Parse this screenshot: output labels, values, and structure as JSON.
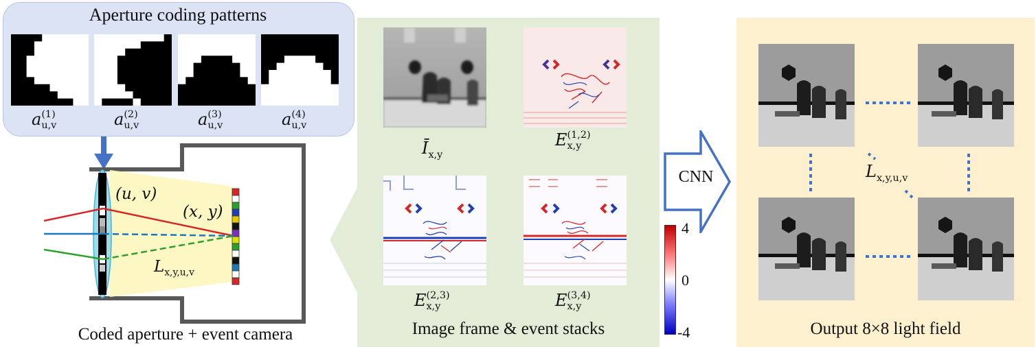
{
  "aperture_panel": {
    "title": "Aperture coding patterns",
    "pattern_symbols": [
      {
        "base": "a",
        "sub": "u,v",
        "sup": "(1)"
      },
      {
        "base": "a",
        "sub": "u,v",
        "sup": "(2)"
      },
      {
        "base": "a",
        "sub": "u,v",
        "sup": "(3)"
      },
      {
        "base": "a",
        "sub": "u,v",
        "sup": "(4)"
      }
    ]
  },
  "camera": {
    "label_uv": "(u, v)",
    "label_xy": "(x, y)",
    "label_L": {
      "base": "L",
      "sub": "x,y,u,v"
    },
    "caption": "Coded aperture + event camera"
  },
  "middle_panel": {
    "symbols": [
      {
        "base": "Ī",
        "sub": "x,y",
        "sup": ""
      },
      {
        "base": "E",
        "sub": "x,y",
        "sup": "(1,2)"
      },
      {
        "base": "E",
        "sub": "x,y",
        "sup": "(2,3)"
      },
      {
        "base": "E",
        "sub": "x,y",
        "sup": "(3,4)"
      }
    ],
    "caption": "Image frame & event stacks",
    "colorbar_ticks": [
      "4",
      "0",
      "-4"
    ]
  },
  "cnn_arrow_label": "CNN",
  "output_panel": {
    "label_L": {
      "base": "L",
      "sub": "x,y,u,v"
    },
    "caption": "Output 8×8 light field"
  },
  "colors": {
    "aperture_panel_bg": "#dbe3f4",
    "middle_panel_bg": "#e2ecd6",
    "output_panel_bg": "#fdf0cf",
    "arrow_blue": "#4472c4",
    "ray_red": "#d62728",
    "ray_blue": "#1f77b4",
    "ray_green": "#2ca02c"
  }
}
